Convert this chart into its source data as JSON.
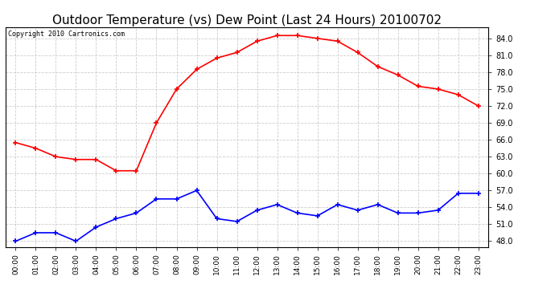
{
  "title": "Outdoor Temperature (vs) Dew Point (Last 24 Hours) 20100702",
  "copyright": "Copyright 2010 Cartronics.com",
  "x_labels": [
    "00:00",
    "01:00",
    "02:00",
    "03:00",
    "04:00",
    "05:00",
    "06:00",
    "07:00",
    "08:00",
    "09:00",
    "10:00",
    "11:00",
    "12:00",
    "13:00",
    "14:00",
    "15:00",
    "16:00",
    "17:00",
    "18:00",
    "19:00",
    "20:00",
    "21:00",
    "22:00",
    "23:00"
  ],
  "temp_data": [
    65.5,
    64.5,
    63.0,
    62.5,
    62.5,
    60.5,
    60.5,
    69.0,
    75.0,
    78.5,
    80.5,
    81.5,
    83.5,
    84.5,
    84.5,
    84.0,
    83.5,
    81.5,
    79.0,
    77.5,
    75.5,
    75.0,
    74.0,
    72.0
  ],
  "dew_data": [
    48.0,
    49.5,
    49.5,
    48.0,
    50.5,
    52.0,
    53.0,
    55.5,
    55.5,
    57.0,
    52.0,
    51.5,
    53.5,
    54.5,
    53.0,
    52.5,
    54.5,
    53.5,
    54.5,
    53.0,
    53.0,
    53.5,
    56.5,
    56.5
  ],
  "temp_color": "#ff0000",
  "dew_color": "#0000ff",
  "ylim_min": 47.0,
  "ylim_max": 86.0,
  "yticks": [
    48.0,
    51.0,
    54.0,
    57.0,
    60.0,
    63.0,
    66.0,
    69.0,
    72.0,
    75.0,
    78.0,
    81.0,
    84.0
  ],
  "background_color": "#ffffff",
  "plot_bg_color": "#ffffff",
  "grid_color": "#cccccc",
  "title_fontsize": 11,
  "copyright_fontsize": 6,
  "marker": "+"
}
